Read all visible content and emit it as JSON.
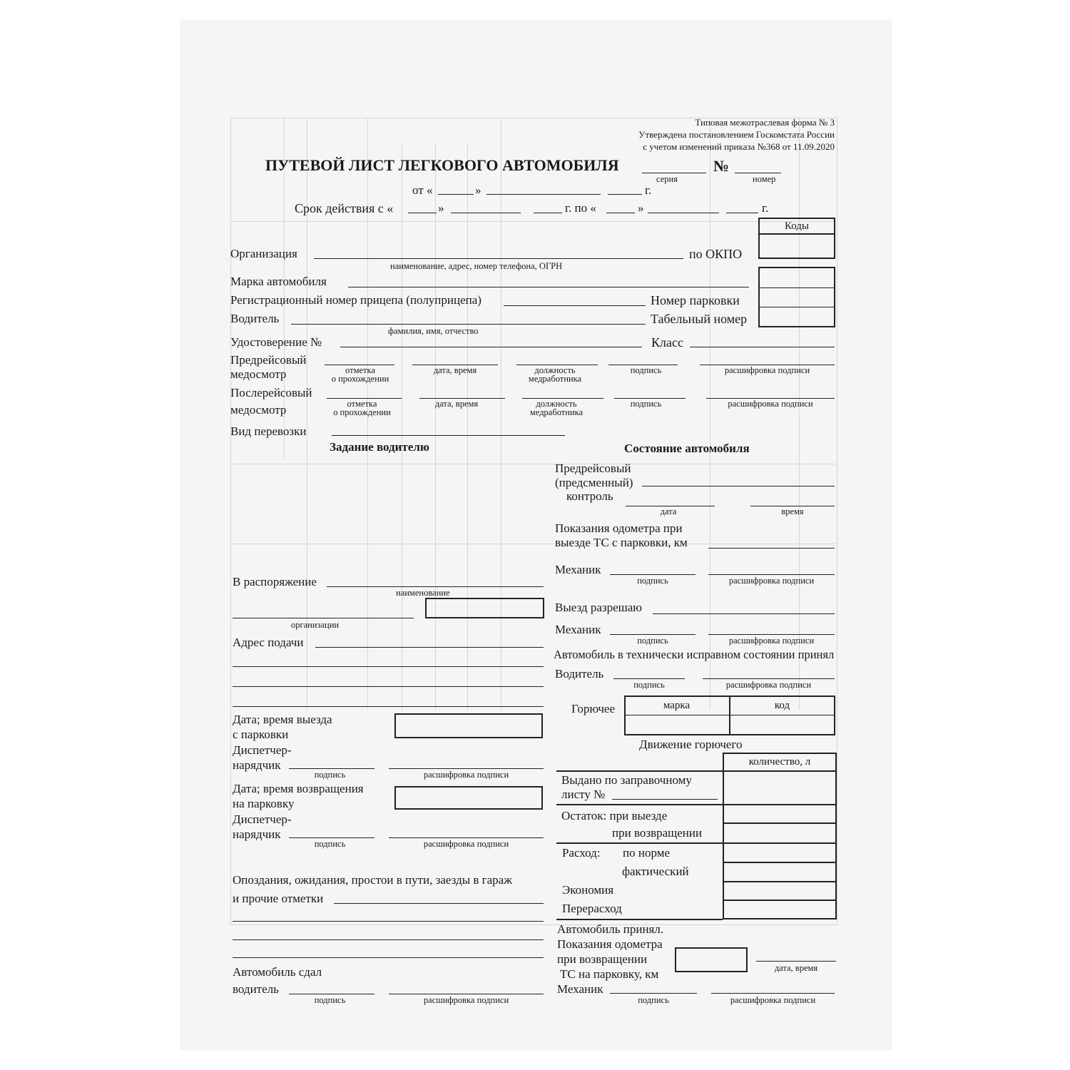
{
  "header": {
    "form_line1": "Типовая межотраслевая форма № 3",
    "form_line2": "Утверждена постановлением Госкомстата России",
    "form_line3": "с учетом изменений приказа №368 от 11.09.2020",
    "title": "ПУТЕВОЙ ЛИСТ ЛЕГКОВОГО АВТОМОБИЛЯ",
    "number_sign": "№",
    "series_caption": "серия",
    "number_caption": "номер",
    "from_label": "от «",
    "quote_close": "»",
    "year": "г.",
    "validity_label": "Срок действия с «",
    "validity_to": "г. по «"
  },
  "codes": {
    "header": "Коды",
    "okpo": "по ОКПО"
  },
  "fields": {
    "organization": "Организация",
    "organization_caption": "наименование, адрес, номер телефона, ОГРН",
    "car_brand": "Марка автомобиля",
    "trailer_number": "Регистрационный номер прицепа (полуприцепа)",
    "parking_number": "Номер парковки",
    "driver": "Водитель",
    "driver_caption": "фамилия, имя, отчество",
    "personnel_number": "Табельный номер",
    "license": "Удостоверение №",
    "class": "Класс",
    "pre_trip_1": "Предрейсовый",
    "pre_trip_2": "медосмотр",
    "post_trip_1": "Послерейсовый",
    "post_trip_2": "медосмотр",
    "cap_mark_1": "отметка",
    "cap_mark_2": "о прохождении",
    "cap_datetime": "дата, время",
    "cap_position_1": "должность",
    "cap_position_2": "медработника",
    "cap_signature": "подпись",
    "cap_decoding": "расшифровка подписи",
    "transport_type": "Вид перевозки"
  },
  "task": {
    "heading": "Задание водителю",
    "disposal": "В распоряжение",
    "disposal_caption": "наименование",
    "org_caption": "организации",
    "address": "Адрес подачи",
    "depart_1": "Дата; время выезда",
    "depart_2": "с парковки",
    "dispatcher_1": "Диспетчер-",
    "dispatcher_2": "нарядчик",
    "return_1": "Дата; время возвращения",
    "return_2": "на парковку",
    "delays_1": "Опоздания, ожидания, простои в пути, заезды в гараж",
    "delays_2": "и прочие отметки",
    "handed_1": "Автомобиль сдал",
    "handed_2": "водитель"
  },
  "vehicle": {
    "heading": "Состояние автомобиля",
    "control_1": "Предрейсовый",
    "control_2": "(предсменный)",
    "control_3": "контроль",
    "cap_date": "дата",
    "cap_time": "время",
    "odometer_1": "Показания одометра при",
    "odometer_2": "выезде ТС с парковки, км",
    "mechanic": "Механик",
    "exit_allowed": "Выезд разрешаю",
    "accepted_ok": "Автомобиль в технически исправном состоянии принял",
    "driver": "Водитель",
    "fuel": "Горючее",
    "fuel_brand": "марка",
    "fuel_code": "код"
  },
  "fuel_movement": {
    "heading": "Движение горючего",
    "quantity": "количество, л",
    "issued_1": "Выдано по заправочному",
    "issued_2": "листу №",
    "remain_exit": "Остаток: при выезде",
    "remain_return": "при возвращении",
    "consumption": "Расход:",
    "by_norm": "по норме",
    "actual": "фактический",
    "economy": "Экономия",
    "overrun": "Перерасход"
  },
  "return_block": {
    "accepted": "Автомобиль  принял.",
    "odo_1": "Показания одометра",
    "odo_2": "при возвращении",
    "odo_3": "ТС на парковку, км",
    "cap_datetime": "дата, время",
    "mechanic": "Механик"
  }
}
